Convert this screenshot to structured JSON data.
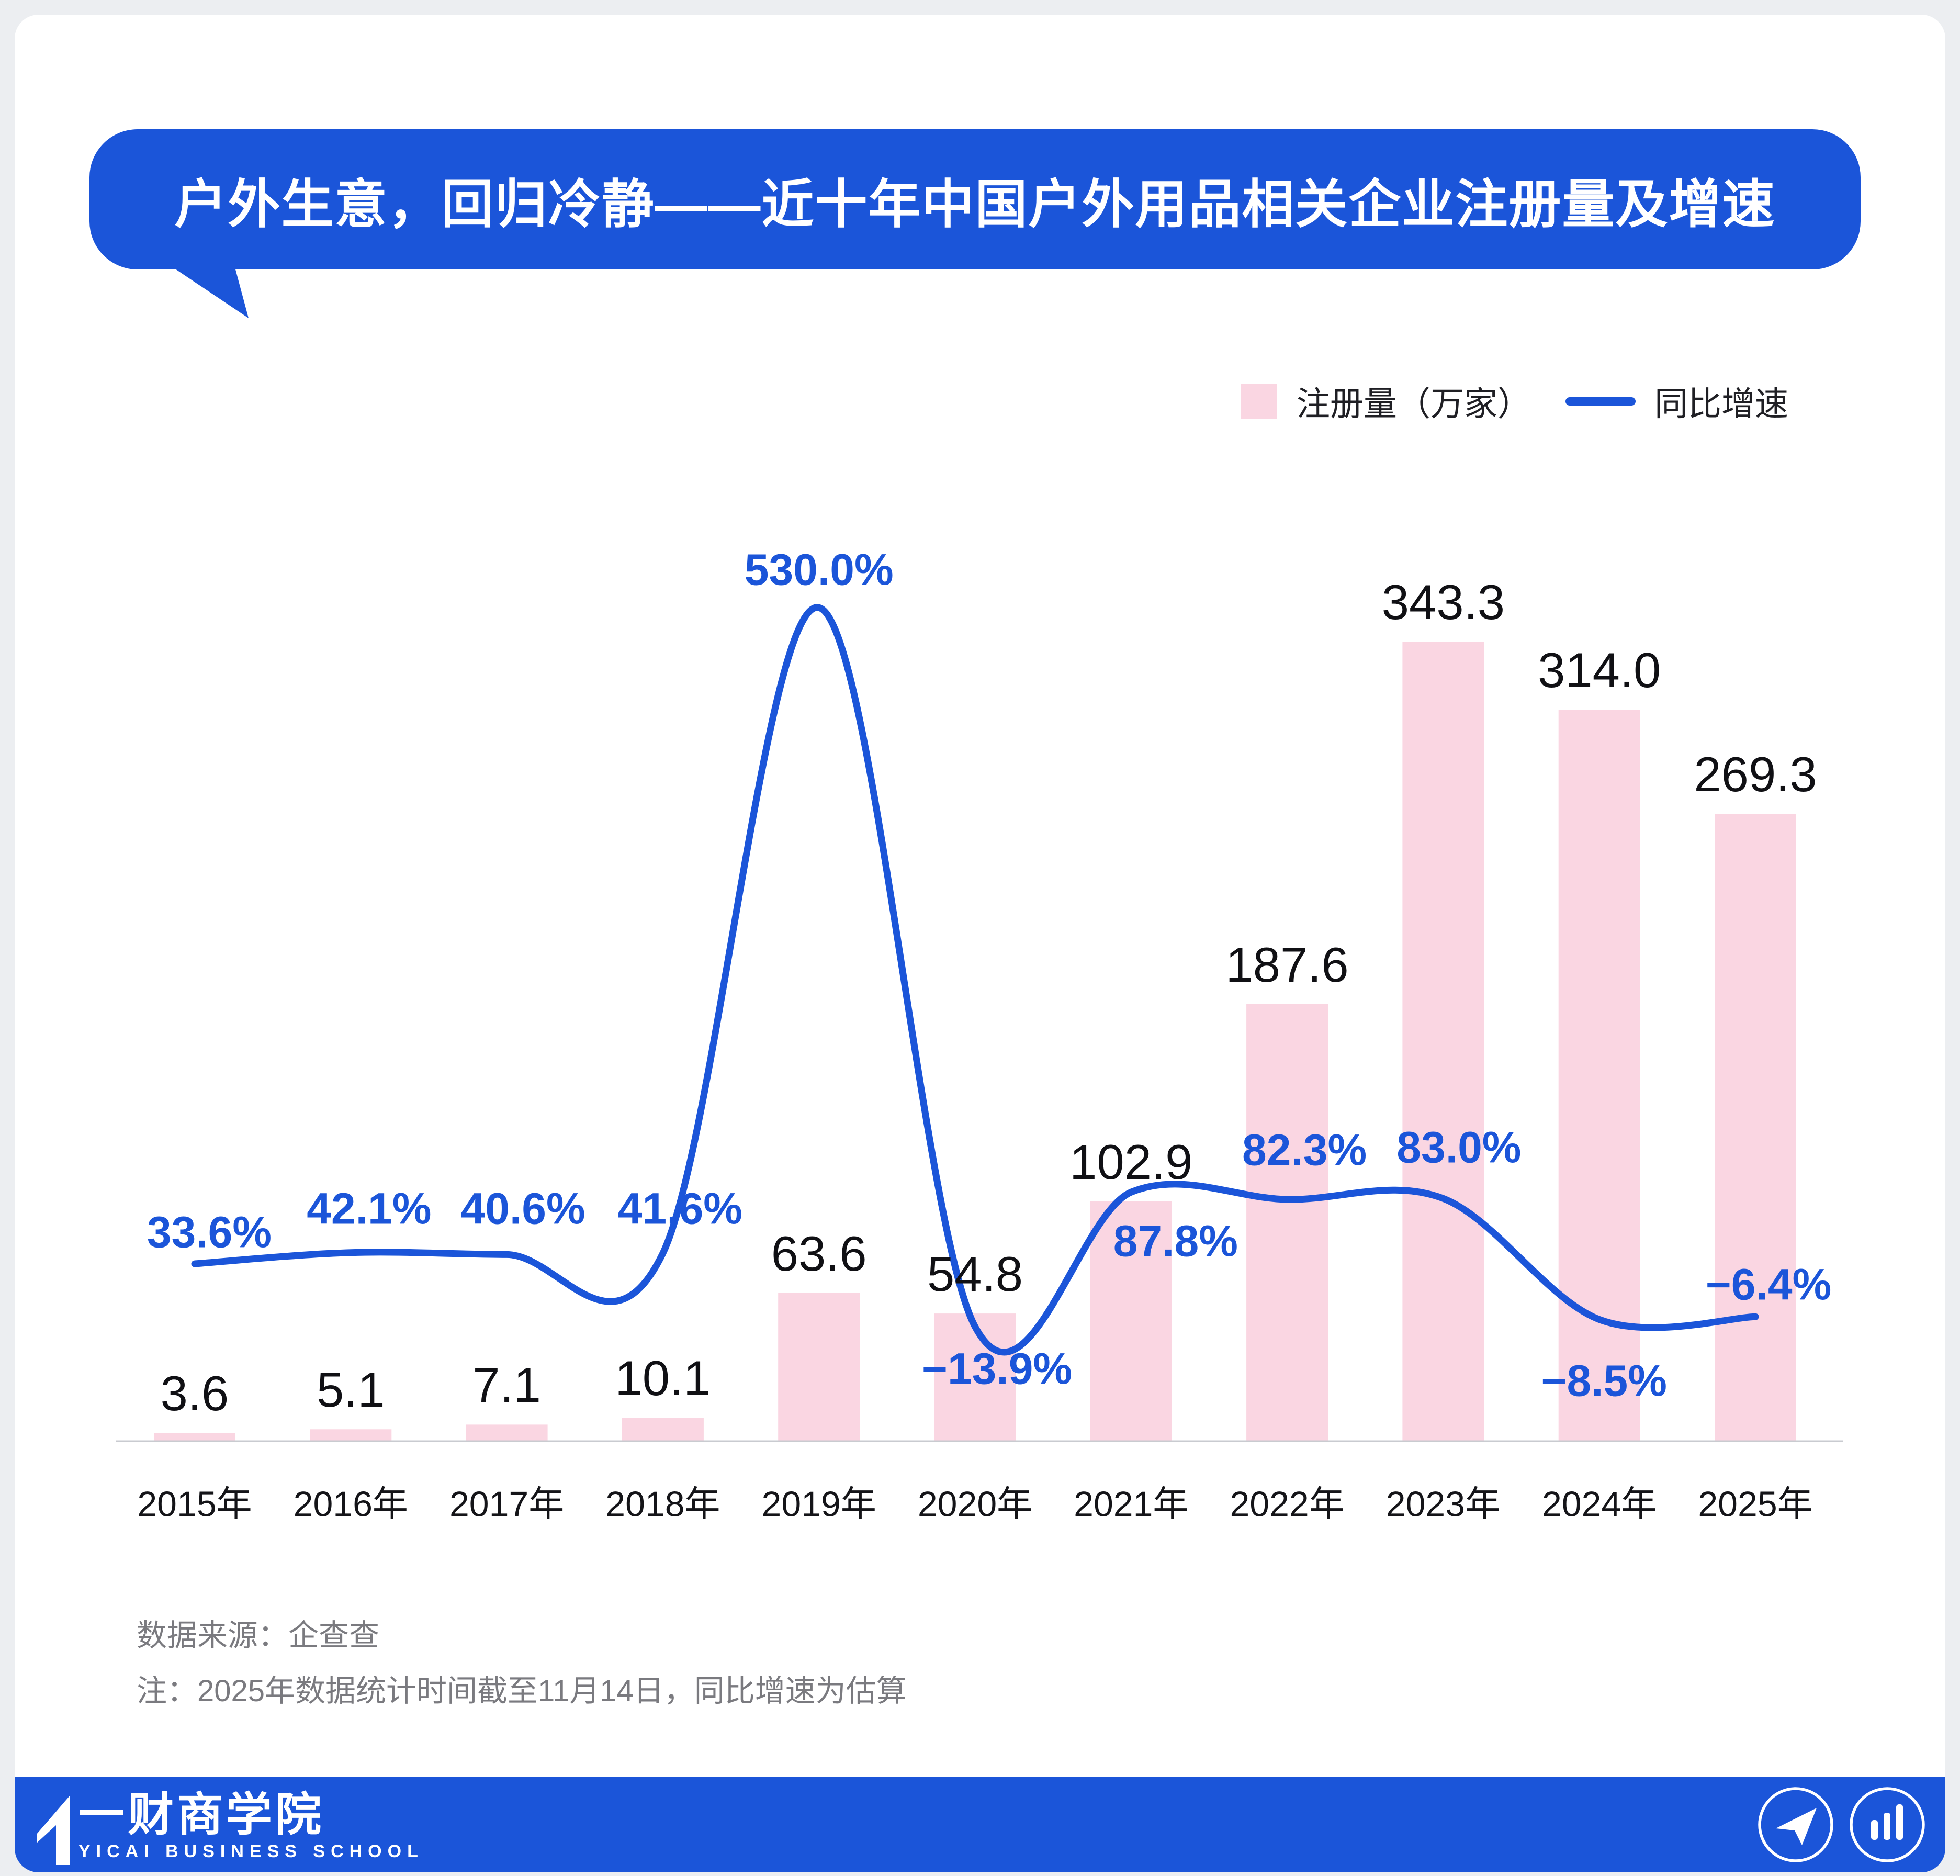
{
  "title": {
    "text": "户外生意，回归冷静——近十年中国户外用品相关企业注册量及增速"
  },
  "legend": {
    "bar_label": "注册量（万家）",
    "line_label": "同比增速"
  },
  "notes": {
    "source": "数据来源：企查查",
    "method": "注：2025年数据统计时间截至11月14日，同比增速为估算"
  },
  "footer": {
    "logo_cn": "一财商学院",
    "logo_en": "YICAI BUSINESS SCHOOL",
    "icons": [
      "send-icon",
      "bar-chart-icon"
    ]
  },
  "colors": {
    "accent_blue": "#1B55D9",
    "bar_pink": "#FAD6E2",
    "label_black": "#101014",
    "note_gray": "#7A7A7F",
    "page_bg": "#ECEEF1",
    "axis_gray": "#C9CBD0"
  },
  "chart_data": {
    "type": "bar",
    "combo": "bar+line",
    "title": "近十年中国户外用品相关企业注册量及增速",
    "categories": [
      "2015年",
      "2016年",
      "2017年",
      "2018年",
      "2019年",
      "2020年",
      "2021年",
      "2022年",
      "2023年",
      "2024年",
      "2025年"
    ],
    "series": [
      {
        "name": "注册量（万家）",
        "kind": "bar",
        "unit": "万家",
        "values": [
          3.6,
          5.1,
          7.1,
          10.1,
          63.6,
          54.8,
          102.9,
          187.6,
          343.3,
          314.0,
          269.3
        ],
        "labels": [
          "3.6",
          "5.1",
          "7.1",
          "10.1",
          "63.6",
          "54.8",
          "102.9",
          "187.6",
          "343.3",
          "314.0",
          "269.3"
        ],
        "color": "#FAD6E2"
      },
      {
        "name": "同比增速",
        "kind": "line",
        "unit": "%",
        "values": [
          33.6,
          42.1,
          40.6,
          41.6,
          530.0,
          -13.9,
          87.8,
          82.3,
          83.0,
          -8.5,
          -6.4
        ],
        "labels": [
          "33.6%",
          "42.1%",
          "40.6%",
          "41.6%",
          "530.0%",
          "−13.9%",
          "87.8%",
          "82.3%",
          "83.0%",
          "−8.5%",
          "−6.4%"
        ],
        "color": "#1B55D9"
      }
    ],
    "legend_position": "top-right",
    "grid": false,
    "baseline_axis": true,
    "ylim_bar": [
      0,
      360
    ],
    "ylim_line_pct": [
      -100,
      560
    ]
  }
}
